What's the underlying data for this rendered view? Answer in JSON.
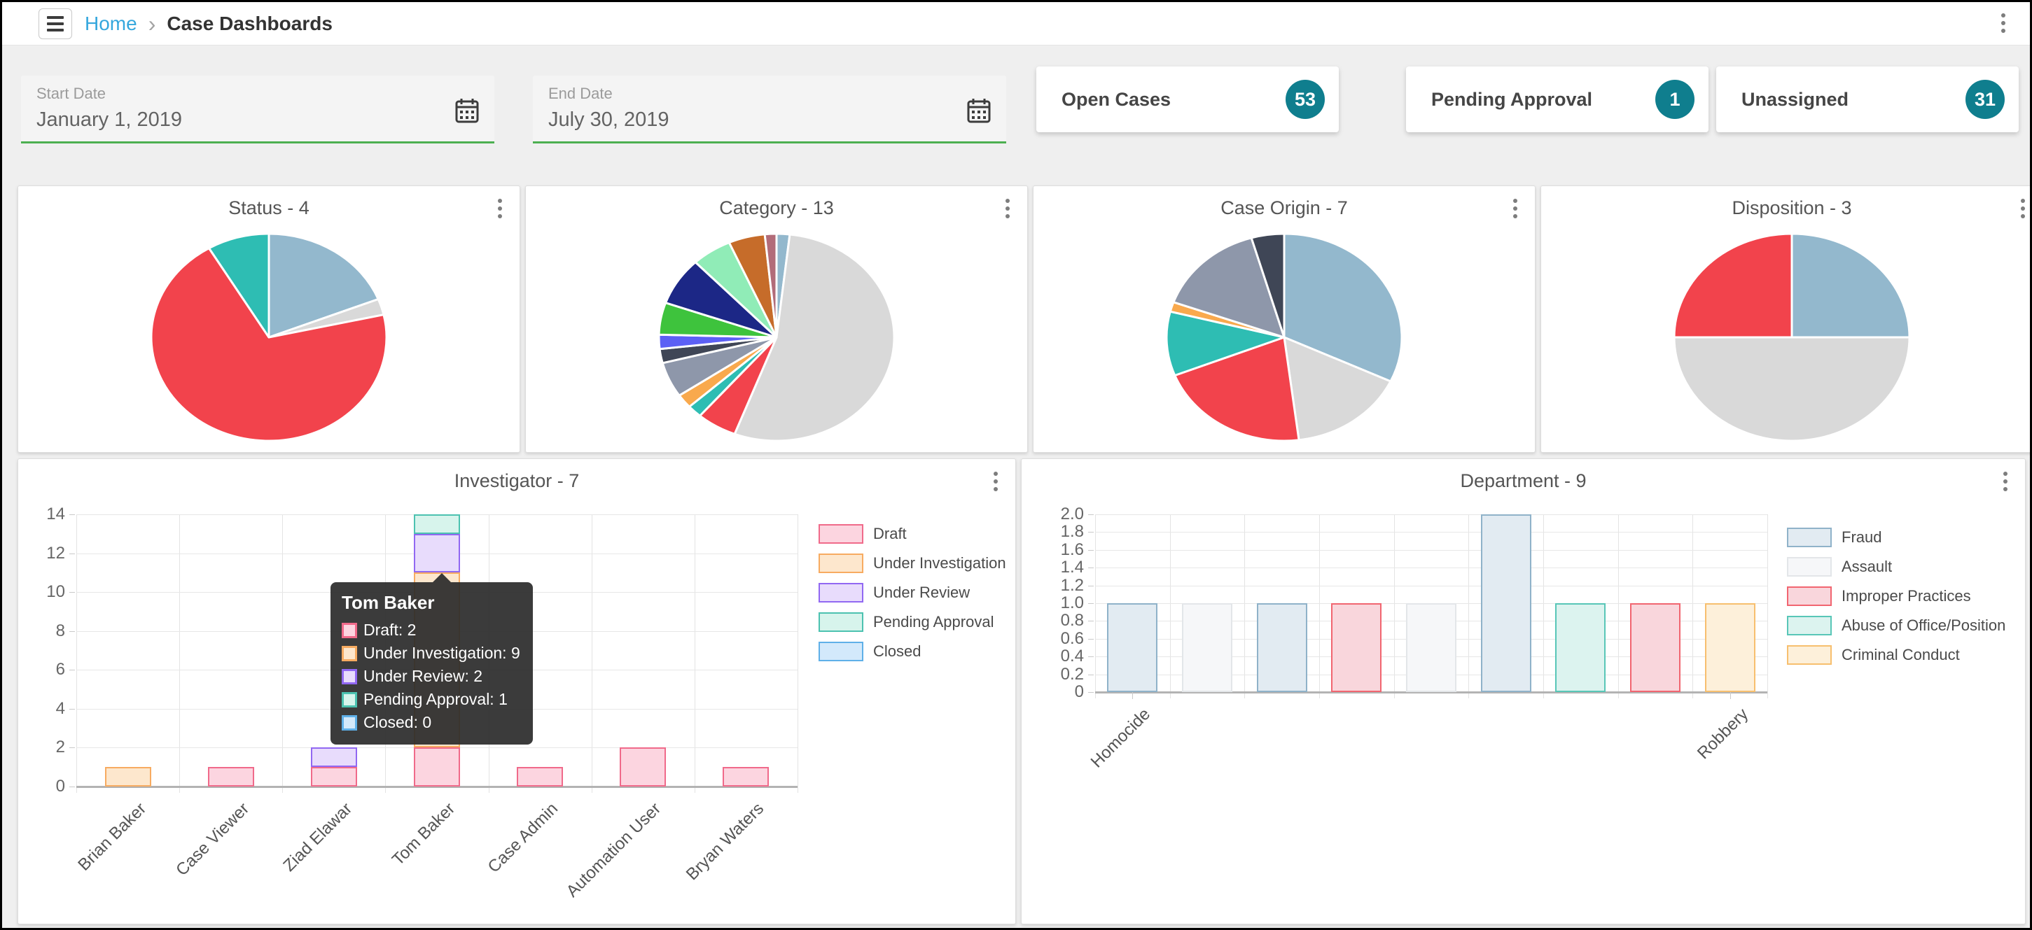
{
  "topbar": {
    "breadcrumb": {
      "home": "Home",
      "separator": "›",
      "current": "Case Dashboards"
    },
    "kebab_menu_icon": "kebab-menu-icon"
  },
  "filters": {
    "start_date": {
      "label": "Start Date",
      "value": "January 1, 2019",
      "icon": "calendar-icon"
    },
    "end_date": {
      "label": "End Date",
      "value": "July 30, 2019",
      "icon": "calendar-icon"
    }
  },
  "kpis": [
    {
      "label": "Open Cases",
      "count": "53"
    },
    {
      "label": "Pending Approval",
      "count": "1"
    },
    {
      "label": "Unassigned",
      "count": "31"
    }
  ],
  "colors": {
    "link_blue": "#35a7dd",
    "badge_teal": "#0f7e8e",
    "green_underline": "#4caf50"
  },
  "chart_data": [
    {
      "type": "pie",
      "title": "Status - 4",
      "legend": "off",
      "slices": [
        {
          "color": "#93b8cd",
          "value": 19
        },
        {
          "color": "#d9d9d9",
          "value": 2.5
        },
        {
          "color": "#f2434c",
          "value": 70
        },
        {
          "color": "#2ebdb3",
          "value": 8.5
        }
      ]
    },
    {
      "type": "pie",
      "title": "Category - 13",
      "legend": "off",
      "slices": [
        {
          "color": "#93b8cd",
          "value": 1.8
        },
        {
          "color": "#d9d9d9",
          "value": 54
        },
        {
          "color": "#f2434c",
          "value": 5.5
        },
        {
          "color": "#2ebdb3",
          "value": 2
        },
        {
          "color": "#f9a94d",
          "value": 2.2
        },
        {
          "color": "#8e97aa",
          "value": 5.5
        },
        {
          "color": "#3f4656",
          "value": 2.2
        },
        {
          "color": "#5c60f5",
          "value": 2.2
        },
        {
          "color": "#3ec33d",
          "value": 5
        },
        {
          "color": "#1c2786",
          "value": 7.5
        },
        {
          "color": "#90ecb7",
          "value": 5.5
        },
        {
          "color": "#c66c2a",
          "value": 5
        },
        {
          "color": "#b26c79",
          "value": 1.6
        }
      ]
    },
    {
      "type": "pie",
      "title": "Case Origin - 7",
      "legend": "off",
      "slices": [
        {
          "color": "#93b8cd",
          "value": 32
        },
        {
          "color": "#d9d9d9",
          "value": 16
        },
        {
          "color": "#f2434c",
          "value": 21
        },
        {
          "color": "#2ebdb3",
          "value": 10
        },
        {
          "color": "#f9a94d",
          "value": 1.5
        },
        {
          "color": "#8e97aa",
          "value": 15
        },
        {
          "color": "#3f4656",
          "value": 4.5
        }
      ]
    },
    {
      "type": "pie",
      "title": "Disposition - 3",
      "legend": "off",
      "slices": [
        {
          "color": "#93b8cd",
          "value": 25
        },
        {
          "color": "#d9d9d9",
          "value": 50
        },
        {
          "color": "#f2434c",
          "value": 25
        }
      ]
    },
    {
      "type": "bar",
      "stacked": true,
      "title": "Investigator - 7",
      "categories": [
        "Brian Baker",
        "Case Viewer",
        "Ziad Elawar",
        "Tom Baker",
        "Case Admin",
        "Automation User",
        "Bryan Waters"
      ],
      "series": [
        {
          "name": "Draft",
          "fill": "#fcd5e0",
          "border": "#f06a8a",
          "values": [
            0,
            1,
            1,
            2,
            1,
            2,
            1
          ]
        },
        {
          "name": "Under Investigation",
          "fill": "#fde7cd",
          "border": "#f7ab61",
          "values": [
            1,
            0,
            0,
            9,
            0,
            0,
            0
          ]
        },
        {
          "name": "Under Review",
          "fill": "#e8dcfc",
          "border": "#9168f2",
          "values": [
            0,
            0,
            1,
            2,
            0,
            0,
            0
          ]
        },
        {
          "name": "Pending Approval",
          "fill": "#d7f4ec",
          "border": "#4cc2b0",
          "values": [
            0,
            0,
            0,
            1,
            0,
            0,
            0
          ]
        },
        {
          "name": "Closed",
          "fill": "#d3e9fb",
          "border": "#5fb0e8",
          "values": [
            0,
            0,
            0,
            0,
            0,
            0,
            0
          ]
        }
      ],
      "ylim": [
        0,
        14
      ],
      "ytick_step": 2,
      "grid": true,
      "legend_position": "right",
      "tooltip": {
        "title": "Tom Baker",
        "rows": [
          {
            "label": "Draft",
            "value": "2"
          },
          {
            "label": "Under Investigation",
            "value": "9"
          },
          {
            "label": "Under Review",
            "value": "2"
          },
          {
            "label": "Pending Approval",
            "value": "1"
          },
          {
            "label": "Closed",
            "value": "0"
          }
        ]
      }
    },
    {
      "type": "bar",
      "stacked": false,
      "title": "Department - 9",
      "series": [
        {
          "name": "Fraud",
          "fill": "#e2ebf2",
          "border": "#8fb2c9"
        },
        {
          "name": "Assault",
          "fill": "#f6f7f9",
          "border": "#e3e6e9"
        },
        {
          "name": "Improper Practices",
          "fill": "#f9d6dc",
          "border": "#f16570"
        },
        {
          "name": "Abuse of Office/Position",
          "fill": "#dcf3ef",
          "border": "#58c6b7"
        },
        {
          "name": "Criminal Conduct",
          "fill": "#fdf0da",
          "border": "#f7bf6e"
        }
      ],
      "bars": [
        {
          "series": 0,
          "value": 1
        },
        {
          "series": 1,
          "value": 1
        },
        {
          "series": 0,
          "value": 1
        },
        {
          "series": 2,
          "value": 1
        },
        {
          "series": 1,
          "value": 1
        },
        {
          "series": 0,
          "value": 2
        },
        {
          "series": 3,
          "value": 1
        },
        {
          "series": 2,
          "value": 1
        },
        {
          "series": 4,
          "value": 1
        }
      ],
      "x_labels_shown": [
        {
          "index": 0,
          "label": "Homocide"
        },
        {
          "index": 8,
          "label": "Robbery"
        }
      ],
      "ylim": [
        0,
        2
      ],
      "ytick_step": 0.2,
      "grid": true,
      "legend_position": "right"
    }
  ]
}
